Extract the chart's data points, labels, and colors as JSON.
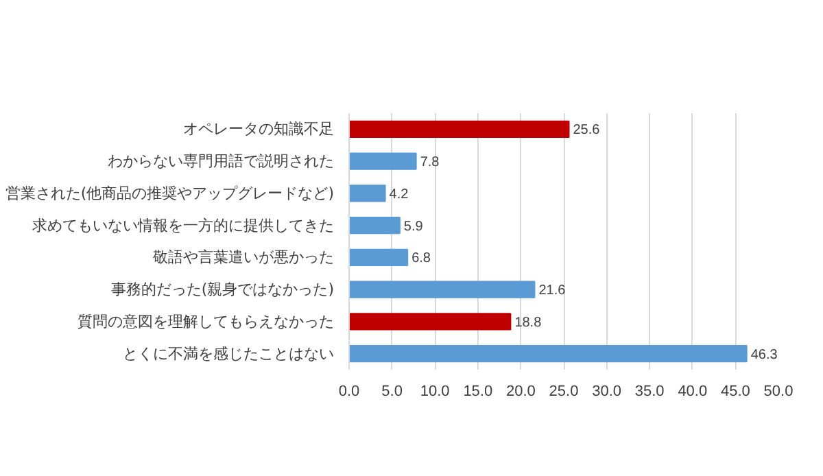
{
  "chart_data": {
    "type": "bar",
    "orientation": "horizontal",
    "categories": [
      "オペレータの知識不足",
      "わからない専門用語で説明された",
      "営業された(他商品の推奨やアップグレードなど)",
      "求めてもいない情報を一方的に提供してきた",
      "敬語や言葉遣いが悪かった",
      "事務的だった(親身ではなかった)",
      "質問の意図を理解してもらえなかった",
      "とくに不満を感じたことはない"
    ],
    "values": [
      25.6,
      7.8,
      4.2,
      5.9,
      6.8,
      21.6,
      18.8,
      46.3
    ],
    "colors": [
      "#c00000",
      "#5b9bd5",
      "#5b9bd5",
      "#5b9bd5",
      "#5b9bd5",
      "#5b9bd5",
      "#c00000",
      "#5b9bd5"
    ],
    "xlim": [
      0,
      50
    ],
    "xticks": [
      {
        "value": 0,
        "label": "0.0"
      },
      {
        "value": 5,
        "label": "5.0"
      },
      {
        "value": 10,
        "label": "10.0"
      },
      {
        "value": 15,
        "label": "15.0"
      },
      {
        "value": 20,
        "label": "20.0"
      },
      {
        "value": 25,
        "label": "25.0"
      },
      {
        "value": 30,
        "label": "30.0"
      },
      {
        "value": 35,
        "label": "35.0"
      },
      {
        "value": 40,
        "label": "40.0"
      },
      {
        "value": 45,
        "label": "45.0"
      },
      {
        "value": 50,
        "label": "50.0"
      }
    ],
    "grid": "x",
    "data_labels": true
  }
}
